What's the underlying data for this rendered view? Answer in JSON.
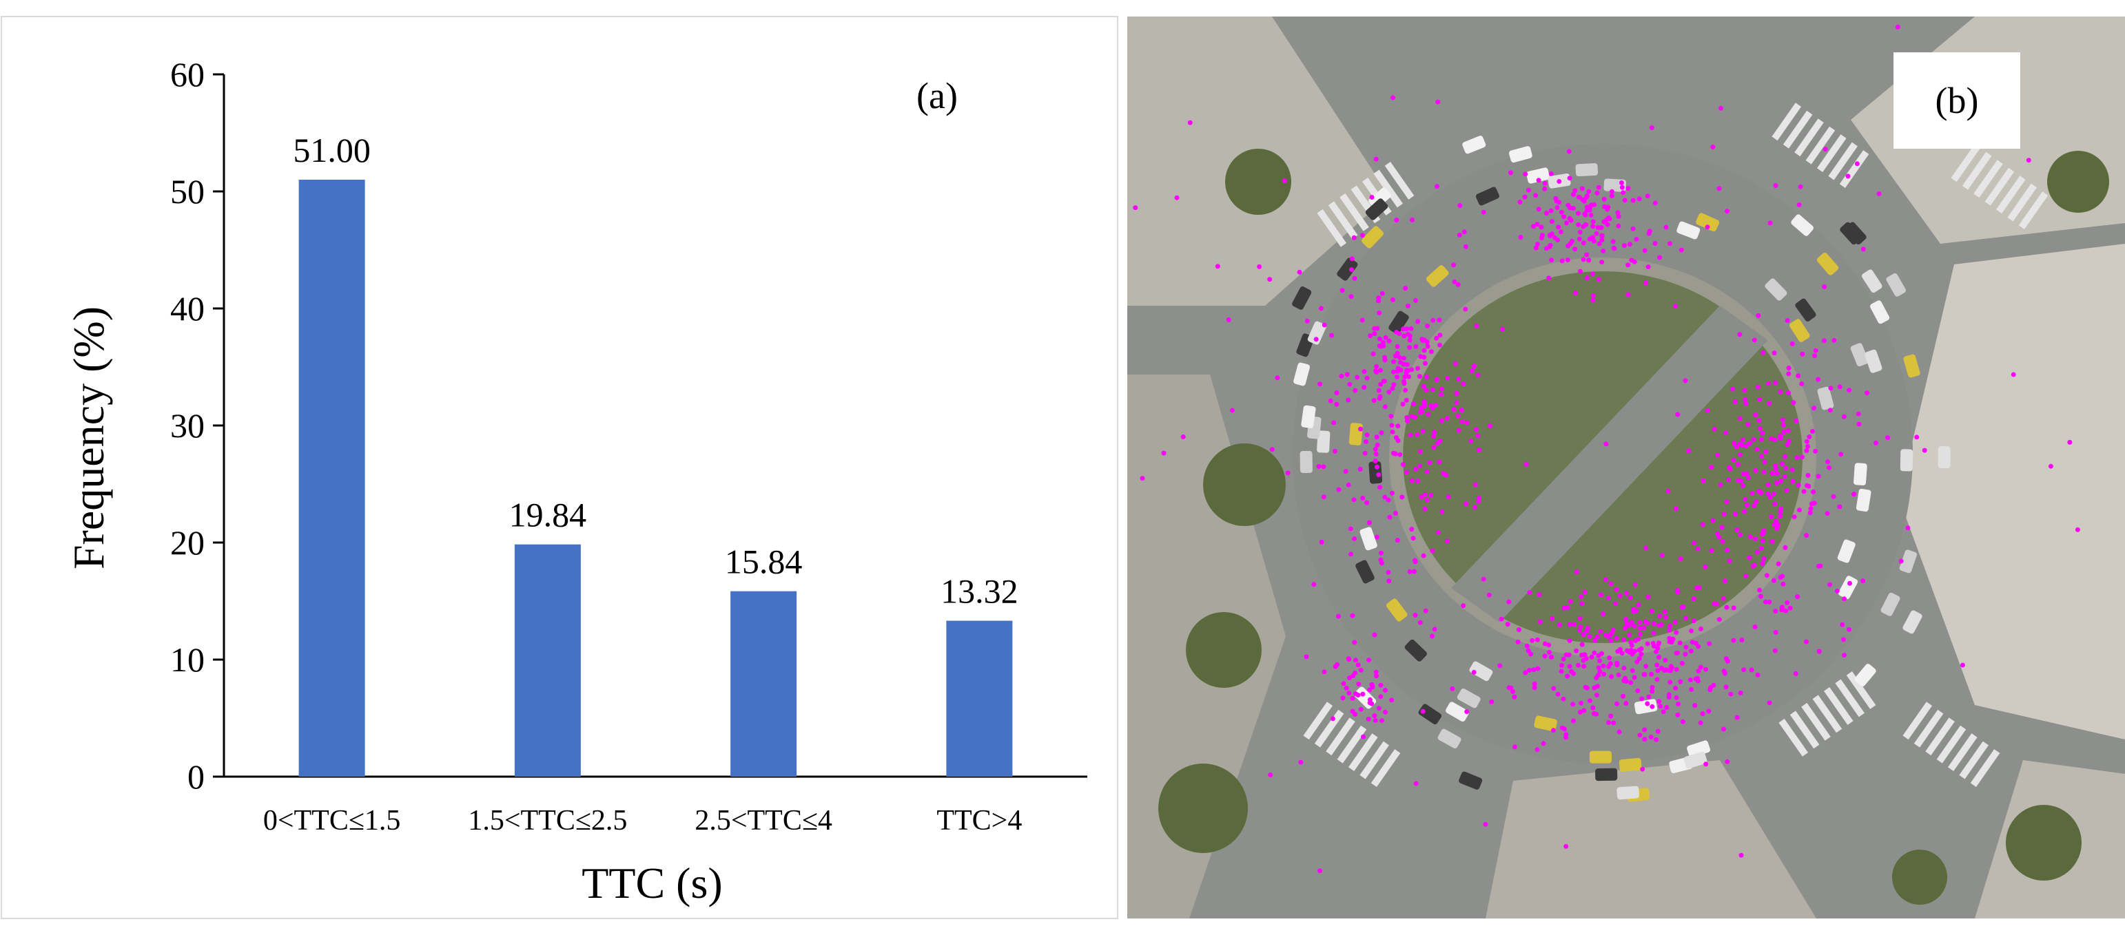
{
  "panels": {
    "a": {
      "label": "(a)"
    },
    "b": {
      "label": "(b)"
    }
  },
  "chart_data": {
    "type": "bar",
    "categories": [
      "0<TTC≤1.5",
      "1.5<TTC≤2.5",
      "2.5<TTC≤4",
      "TTC>4"
    ],
    "values": [
      51.0,
      19.84,
      15.84,
      13.32
    ],
    "value_labels": [
      "51.00",
      "19.84",
      "15.84",
      "13.32"
    ],
    "xlabel": "TTC (s)",
    "ylabel": "Frequency (%)",
    "ylim": [
      0,
      60
    ],
    "yticks": [
      0,
      10,
      20,
      30,
      40,
      50,
      60
    ],
    "grid": false,
    "legend": "none",
    "bar_color": "#4472c4"
  },
  "colors": {
    "conflict_points": "#ff00ff",
    "road": "#8d8f8c",
    "island_grass": "#6b7a52"
  }
}
